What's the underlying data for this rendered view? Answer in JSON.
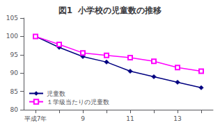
{
  "chart_data": {
    "type": "line",
    "title": "図1  小学校の児童数の推移",
    "categories": [
      "平成7年",
      null,
      "9",
      null,
      "11",
      null,
      "13",
      null
    ],
    "series": [
      {
        "name": "児童数",
        "color": "#000080",
        "marker": "diamond",
        "values": [
          100,
          97,
          94.5,
          93,
          90.5,
          89,
          87.5,
          86
        ]
      },
      {
        "name": "１学級当たりの児童数",
        "color": "#FF00FF",
        "marker": "open_square",
        "values": [
          100,
          97.8,
          95.5,
          94.8,
          94.2,
          93.2,
          91.5,
          90.5
        ]
      }
    ],
    "ylim": [
      80,
      105
    ],
    "yticks": [
      80,
      85,
      90,
      95,
      100,
      105
    ],
    "grid": false,
    "legend": "lower left"
  }
}
